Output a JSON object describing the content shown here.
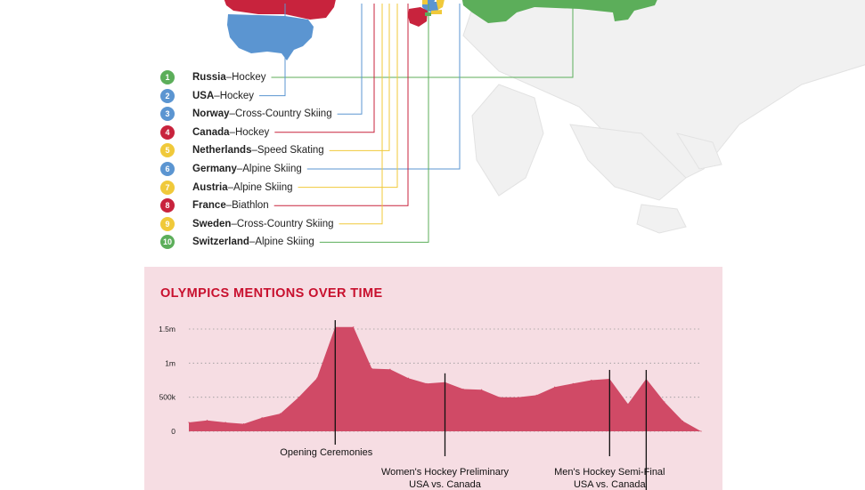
{
  "colors": {
    "green": "#5cae5a",
    "blue": "#5b95d1",
    "red": "#c8233d",
    "yellow": "#f0c93a",
    "land": "#e6e6e6",
    "chart_fill": "#d04a66",
    "chart_panel": "#f6dde3",
    "title": "#c8102e"
  },
  "legend": [
    {
      "num": "1",
      "country": "Russia",
      "sport": "Hockey",
      "color": "#5cae5a"
    },
    {
      "num": "2",
      "country": "USA",
      "sport": "Hockey",
      "color": "#5b95d1"
    },
    {
      "num": "3",
      "country": "Norway",
      "sport": "Cross-Country Skiing",
      "color": "#5b95d1"
    },
    {
      "num": "4",
      "country": "Canada",
      "sport": "Hockey",
      "color": "#c8233d"
    },
    {
      "num": "5",
      "country": "Netherlands",
      "sport": "Speed Skating",
      "color": "#f0c93a"
    },
    {
      "num": "6",
      "country": "Germany",
      "sport": "Alpine Skiing",
      "color": "#5b95d1"
    },
    {
      "num": "7",
      "country": "Austria",
      "sport": "Alpine Skiing",
      "color": "#f0c93a"
    },
    {
      "num": "8",
      "country": "France",
      "sport": "Biathlon",
      "color": "#c8233d"
    },
    {
      "num": "9",
      "country": "Sweden",
      "sport": "Cross-Country Skiing",
      "color": "#f0c93a"
    },
    {
      "num": "10",
      "country": "Switzerland",
      "sport": "Alpine Skiing",
      "color": "#5cae5a"
    }
  ],
  "legend_separator": " – ",
  "chart_data": {
    "type": "area",
    "title": "OLYMPICS MENTIONS OVER TIME",
    "xlabel": "",
    "ylabel": "",
    "ylim": [
      0,
      1500000
    ],
    "yticks": [
      {
        "value": 0,
        "label": "0"
      },
      {
        "value": 500000,
        "label": "500k"
      },
      {
        "value": 1000000,
        "label": "1m"
      },
      {
        "value": 1500000,
        "label": "1.5m"
      }
    ],
    "grid": true,
    "series": [
      {
        "values": [
          130000,
          160000,
          130000,
          110000,
          200000,
          260000,
          500000,
          780000,
          1530000,
          1530000,
          920000,
          910000,
          780000,
          700000,
          720000,
          620000,
          610000,
          500000,
          500000,
          530000,
          650000,
          700000,
          750000,
          770000,
          400000,
          770000,
          430000,
          150000,
          0
        ]
      }
    ],
    "annotations": [
      {
        "index": 8,
        "lines": [
          "Opening Ceremonies"
        ]
      },
      {
        "index": 14,
        "lines": [
          "Women's Hockey Preliminary",
          "USA vs. Canada"
        ]
      },
      {
        "index": 23,
        "lines": [
          "Men's Hockey Semi-Final",
          "USA vs. Canada"
        ]
      },
      {
        "index": 25,
        "lines": []
      }
    ]
  }
}
